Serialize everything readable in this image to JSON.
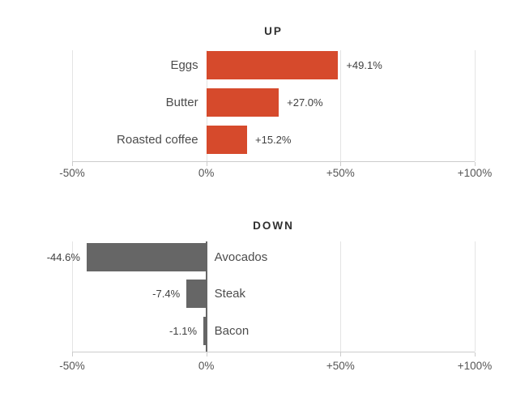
{
  "page": {
    "background": "#ffffff"
  },
  "chart_data": [
    {
      "type": "bar",
      "orientation": "horizontal",
      "title": "UP",
      "categories": [
        "Eggs",
        "Butter",
        "Roasted coffee"
      ],
      "values": [
        49.1,
        27.0,
        15.2
      ],
      "value_labels": [
        "+49.1%",
        "+27.0%",
        "+15.2%"
      ],
      "category_side": "left-of-zero",
      "value_label_side": "right-of-bar-end",
      "bar_color": "#d64a2c",
      "xlim": [
        -50,
        100
      ],
      "x_ticks": [
        {
          "value": -50,
          "label": "-50%"
        },
        {
          "value": 0,
          "label": "0%"
        },
        {
          "value": 50,
          "label": "+50%"
        },
        {
          "value": 100,
          "label": "+100%"
        }
      ],
      "grid": true,
      "zero_line": "light",
      "legend": "none"
    },
    {
      "type": "bar",
      "orientation": "horizontal",
      "title": "DOWN",
      "categories": [
        "Avocados",
        "Steak",
        "Bacon"
      ],
      "values": [
        -44.6,
        -7.4,
        -1.1
      ],
      "value_labels": [
        "-44.6%",
        "-7.4%",
        "-1.1%"
      ],
      "category_side": "right-of-zero",
      "value_label_side": "left-of-bar-end",
      "bar_color": "#666666",
      "xlim": [
        -50,
        100
      ],
      "x_ticks": [
        {
          "value": -50,
          "label": "-50%"
        },
        {
          "value": 0,
          "label": "0%"
        },
        {
          "value": 50,
          "label": "+50%"
        },
        {
          "value": 100,
          "label": "+100%"
        }
      ],
      "grid": true,
      "zero_line": "dark",
      "legend": "none"
    }
  ],
  "colors": {
    "up_bar": "#d64a2c",
    "down_bar": "#666666",
    "gridline": "#e4e4e4",
    "axis_line": "#cccccc",
    "zero_line_dark": "#666666",
    "title_text": "#2f2f2f",
    "tick_text": "#555555",
    "category_text": "#4c4c4c",
    "value_text": "#3f3f3f"
  }
}
